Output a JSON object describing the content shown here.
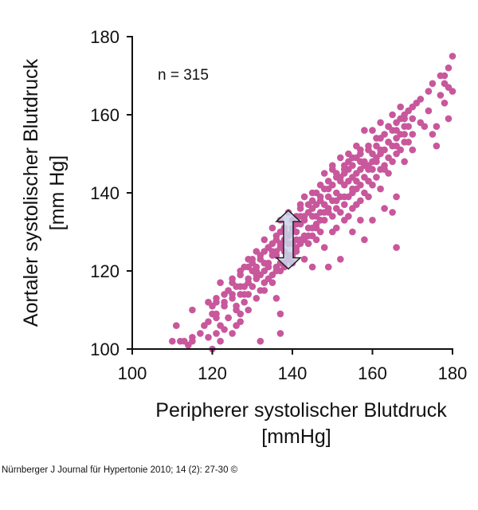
{
  "chart_data": {
    "type": "scatter",
    "xlabel_line1": "Peripherer systolischer Blutdruck",
    "xlabel_line2": "[mmHg]",
    "ylabel_line1": "Aortaler systolischer Blutdruck",
    "ylabel_line2": "[mm Hg]",
    "xlim": [
      100,
      180
    ],
    "ylim": [
      100,
      180
    ],
    "x_ticks": [
      "100",
      "120",
      "140",
      "160",
      "180"
    ],
    "y_ticks": [
      "100",
      "120",
      "140",
      "160",
      "180"
    ],
    "annotation": "n = 315",
    "point_color": "#c8579c",
    "arrow_color": "#c9d3ea",
    "grid": false,
    "series": [
      {
        "points": [
          [
            110,
            102
          ],
          [
            112,
            102
          ],
          [
            111,
            106
          ],
          [
            114,
            101
          ],
          [
            115,
            102
          ],
          [
            115,
            110
          ],
          [
            118,
            106
          ],
          [
            119,
            103
          ],
          [
            119,
            112
          ],
          [
            120,
            111
          ],
          [
            121,
            113
          ],
          [
            120,
            100
          ],
          [
            122,
            117
          ],
          [
            121,
            108
          ],
          [
            122,
            102
          ],
          [
            123,
            112
          ],
          [
            123,
            105
          ],
          [
            124,
            115
          ],
          [
            124,
            108
          ],
          [
            125,
            113
          ],
          [
            125,
            118
          ],
          [
            126,
            116
          ],
          [
            126,
            110
          ],
          [
            126,
            106
          ],
          [
            127,
            119
          ],
          [
            127,
            114
          ],
          [
            127,
            109
          ],
          [
            128,
            121
          ],
          [
            128,
            116
          ],
          [
            128,
            112
          ],
          [
            129,
            123
          ],
          [
            129,
            117
          ],
          [
            129,
            114
          ],
          [
            130,
            122
          ],
          [
            130,
            120
          ],
          [
            130,
            116
          ],
          [
            131,
            121
          ],
          [
            131,
            118
          ],
          [
            131,
            125
          ],
          [
            132,
            123
          ],
          [
            132,
            119
          ],
          [
            132,
            115
          ],
          [
            132,
            102
          ],
          [
            133,
            125
          ],
          [
            133,
            120
          ],
          [
            133,
            117
          ],
          [
            133,
            128
          ],
          [
            134,
            122
          ],
          [
            134,
            118
          ],
          [
            134,
            126
          ],
          [
            135,
            131
          ],
          [
            135,
            127
          ],
          [
            135,
            124
          ],
          [
            135,
            119
          ],
          [
            136,
            129
          ],
          [
            136,
            125
          ],
          [
            136,
            121
          ],
          [
            136,
            113
          ],
          [
            137,
            133
          ],
          [
            137,
            130
          ],
          [
            137,
            126
          ],
          [
            137,
            122
          ],
          [
            137,
            109
          ],
          [
            137,
            104
          ],
          [
            138,
            131
          ],
          [
            138,
            128
          ],
          [
            138,
            125
          ],
          [
            138,
            121
          ],
          [
            139,
            135
          ],
          [
            139,
            129
          ],
          [
            139,
            124
          ],
          [
            140,
            133
          ],
          [
            140,
            130
          ],
          [
            140,
            127
          ],
          [
            140,
            122
          ],
          [
            141,
            134
          ],
          [
            141,
            130
          ],
          [
            141,
            125
          ],
          [
            142,
            136
          ],
          [
            142,
            132
          ],
          [
            142,
            128
          ],
          [
            142,
            137
          ],
          [
            143,
            139
          ],
          [
            143,
            133
          ],
          [
            143,
            129
          ],
          [
            143,
            123
          ],
          [
            144,
            135
          ],
          [
            144,
            131
          ],
          [
            144,
            127
          ],
          [
            145,
            138
          ],
          [
            145,
            134
          ],
          [
            145,
            129
          ],
          [
            145,
            121
          ],
          [
            146,
            140
          ],
          [
            146,
            137
          ],
          [
            146,
            132
          ],
          [
            146,
            128
          ],
          [
            147,
            139
          ],
          [
            147,
            135
          ],
          [
            147,
            130
          ],
          [
            148,
            141
          ],
          [
            148,
            137
          ],
          [
            148,
            133
          ],
          [
            148,
            126
          ],
          [
            149,
            143
          ],
          [
            149,
            139
          ],
          [
            149,
            135
          ],
          [
            149,
            121
          ],
          [
            150,
            142
          ],
          [
            150,
            138
          ],
          [
            150,
            134
          ],
          [
            150,
            130
          ],
          [
            151,
            145
          ],
          [
            151,
            140
          ],
          [
            151,
            136
          ],
          [
            151,
            131
          ],
          [
            152,
            144
          ],
          [
            152,
            139
          ],
          [
            152,
            135
          ],
          [
            152,
            123
          ],
          [
            153,
            146
          ],
          [
            153,
            142
          ],
          [
            153,
            137
          ],
          [
            153,
            133
          ],
          [
            154,
            148
          ],
          [
            154,
            143
          ],
          [
            154,
            139
          ],
          [
            154,
            134
          ],
          [
            155,
            147
          ],
          [
            155,
            144
          ],
          [
            155,
            140
          ],
          [
            155,
            136
          ],
          [
            155,
            130
          ],
          [
            156,
            149
          ],
          [
            156,
            145
          ],
          [
            156,
            141
          ],
          [
            156,
            137
          ],
          [
            157,
            150
          ],
          [
            157,
            146
          ],
          [
            157,
            142
          ],
          [
            157,
            138
          ],
          [
            157,
            133
          ],
          [
            158,
            148
          ],
          [
            158,
            144
          ],
          [
            158,
            140
          ],
          [
            158,
            128
          ],
          [
            159,
            151
          ],
          [
            159,
            147
          ],
          [
            159,
            143
          ],
          [
            159,
            139
          ],
          [
            160,
            150
          ],
          [
            160,
            146
          ],
          [
            160,
            142
          ],
          [
            160,
            133
          ],
          [
            161,
            152
          ],
          [
            161,
            148
          ],
          [
            161,
            144
          ],
          [
            162,
            154
          ],
          [
            162,
            150
          ],
          [
            162,
            146
          ],
          [
            162,
            141
          ],
          [
            163,
            155
          ],
          [
            163,
            151
          ],
          [
            163,
            147
          ],
          [
            163,
            136
          ],
          [
            164,
            157
          ],
          [
            164,
            153
          ],
          [
            164,
            149
          ],
          [
            164,
            145
          ],
          [
            165,
            156
          ],
          [
            165,
            152
          ],
          [
            165,
            148
          ],
          [
            165,
            135
          ],
          [
            166,
            158
          ],
          [
            166,
            154
          ],
          [
            166,
            150
          ],
          [
            166,
            139
          ],
          [
            166,
            126
          ],
          [
            167,
            159
          ],
          [
            167,
            155
          ],
          [
            167,
            151
          ],
          [
            168,
            160
          ],
          [
            168,
            157
          ],
          [
            168,
            153
          ],
          [
            168,
            148
          ],
          [
            169,
            161
          ],
          [
            169,
            157
          ],
          [
            169,
            153
          ],
          [
            170,
            159
          ],
          [
            170,
            155
          ],
          [
            170,
            151
          ],
          [
            171,
            163
          ],
          [
            172,
            158
          ],
          [
            173,
            157
          ],
          [
            174,
            161
          ],
          [
            175,
            155
          ],
          [
            176,
            157
          ],
          [
            176,
            152
          ],
          [
            178,
            168
          ],
          [
            178,
            170
          ],
          [
            179,
            172
          ],
          [
            179,
            167
          ],
          [
            180,
            175
          ],
          [
            180,
            166
          ],
          [
            179,
            159
          ],
          [
            178,
            163
          ],
          [
            177,
            165
          ],
          [
            153,
            145
          ],
          [
            148,
            135
          ],
          [
            146,
            131
          ],
          [
            141,
            128
          ],
          [
            139,
            127
          ],
          [
            136,
            124
          ],
          [
            134,
            121
          ],
          [
            131,
            119
          ],
          [
            128,
            114
          ],
          [
            126,
            111
          ],
          [
            124,
            108
          ],
          [
            122,
            106
          ],
          [
            121,
            104
          ],
          [
            160,
            156
          ],
          [
            162,
            158
          ],
          [
            165,
            160
          ],
          [
            167,
            162
          ],
          [
            158,
            156
          ],
          [
            156,
            152
          ],
          [
            154,
            150
          ],
          [
            152,
            149
          ],
          [
            150,
            146
          ],
          [
            147,
            142
          ],
          [
            145,
            140
          ],
          [
            144,
            137
          ],
          [
            142,
            134
          ],
          [
            140,
            131
          ],
          [
            138,
            130
          ],
          [
            136,
            128
          ],
          [
            134,
            126
          ],
          [
            132,
            124
          ],
          [
            130,
            123
          ],
          [
            129,
            121
          ],
          [
            127,
            120
          ],
          [
            125,
            117
          ],
          [
            123,
            114
          ],
          [
            121,
            112
          ],
          [
            120,
            109
          ],
          [
            157,
            148
          ],
          [
            159,
            146
          ],
          [
            161,
            149
          ],
          [
            163,
            146
          ],
          [
            155,
            141
          ],
          [
            153,
            139
          ],
          [
            151,
            138
          ],
          [
            149,
            136
          ],
          [
            147,
            133
          ],
          [
            145,
            131
          ],
          [
            143,
            128
          ],
          [
            141,
            126
          ],
          [
            139,
            123
          ],
          [
            137,
            120
          ],
          [
            135,
            117
          ],
          [
            133,
            115
          ],
          [
            131,
            113
          ],
          [
            129,
            110
          ],
          [
            127,
            107
          ],
          [
            125,
            104
          ],
          [
            164,
            157
          ],
          [
            166,
            156
          ],
          [
            168,
            159
          ],
          [
            170,
            162
          ],
          [
            172,
            164
          ],
          [
            174,
            166
          ],
          [
            175,
            168
          ],
          [
            177,
            170
          ],
          [
            150,
            147
          ],
          [
            152,
            143
          ],
          [
            154,
            146
          ],
          [
            156,
            143
          ],
          [
            158,
            147
          ],
          [
            160,
            148
          ],
          [
            162,
            151
          ],
          [
            164,
            153
          ],
          [
            166,
            152
          ],
          [
            168,
            155
          ],
          [
            161,
            154
          ],
          [
            159,
            152
          ],
          [
            157,
            151
          ],
          [
            155,
            149
          ],
          [
            153,
            147
          ],
          [
            151,
            144
          ],
          [
            149,
            141
          ],
          [
            147,
            138
          ],
          [
            145,
            136
          ],
          [
            143,
            134
          ],
          [
            141,
            132
          ],
          [
            139,
            129
          ],
          [
            137,
            127
          ],
          [
            135,
            125
          ],
          [
            133,
            122
          ],
          [
            131,
            120
          ],
          [
            129,
            118
          ],
          [
            127,
            116
          ],
          [
            125,
            114
          ],
          [
            123,
            111
          ],
          [
            121,
            109
          ],
          [
            119,
            107
          ],
          [
            117,
            104
          ],
          [
            115,
            103
          ],
          [
            113,
            102
          ],
          [
            148,
            145
          ],
          [
            146,
            134
          ],
          [
            144,
            129
          ],
          [
            142,
            127
          ],
          [
            140,
            124
          ],
          [
            138,
            122
          ],
          [
            136,
            120
          ]
        ]
      }
    ]
  },
  "footer": {
    "citation": "Nürnberger J Journal für Hypertonie 2010; 14 (2): 27-30 ©"
  }
}
